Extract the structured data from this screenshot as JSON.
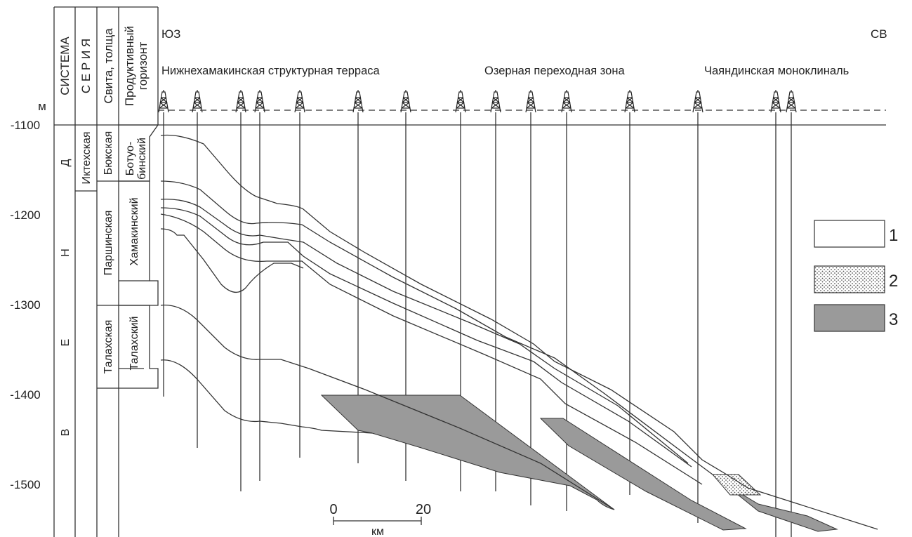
{
  "depth_axis": {
    "unit": "м",
    "ticks": [
      "-1100",
      "-1200",
      "-1300",
      "-1400",
      "-1500"
    ]
  },
  "columns": {
    "system": "СИСТЕМА",
    "series": "С Е Р И Я",
    "suite": "Свита, толща",
    "horizon_line1": "Продуктивный",
    "horizon_line2": "горизонт"
  },
  "system_letters": [
    "Д",
    "Н",
    "Е",
    "В"
  ],
  "suites": {
    "iktekh": "Иктехская",
    "byuk": "Бюкская",
    "parsha": "Паршинская",
    "talakh": "Талахская"
  },
  "horizons": {
    "botuob_line1": "Ботуо-",
    "botuob_line2": "бинский",
    "khamak": "Хамакинский",
    "talakh": "Талахский"
  },
  "directions": {
    "sw": "ЮЗ",
    "ne": "СВ"
  },
  "zones": [
    "Нижнехамакинская структурная терраса",
    "Озерная переходная зона",
    "Чаяндинская моноклиналь"
  ],
  "scale": {
    "start": "0",
    "end": "20",
    "unit": "км"
  },
  "legend": [
    {
      "number": "1",
      "pattern": "empty"
    },
    {
      "number": "2",
      "pattern": "dotted"
    },
    {
      "number": "3",
      "pattern": "gray"
    }
  ],
  "colors": {
    "line": "#333333",
    "fill_gray": "#9a9a9a",
    "stipple": "#555555"
  }
}
